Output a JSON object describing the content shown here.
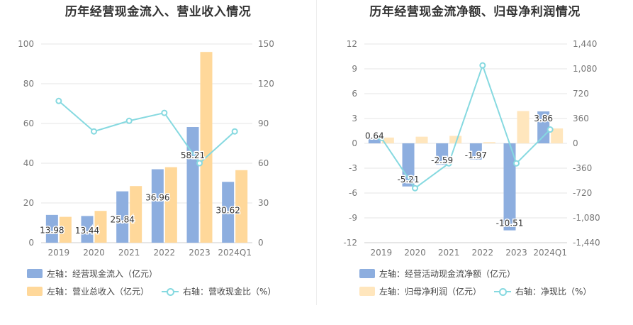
{
  "colors": {
    "bar_left": "#8daedf",
    "bar_right": "#ffd89a",
    "line": "#86d9e0",
    "grid": "#e6e6e6",
    "axis_text": "#777777"
  },
  "chart_data": [
    {
      "type": "bar",
      "title": "历年经营现金流入、营业收入情况",
      "categories": [
        "2019",
        "2020",
        "2021",
        "2022",
        "2023",
        "2024Q1"
      ],
      "y_left": {
        "min": 0,
        "max": 100,
        "ticks": [
          "0",
          "20",
          "40",
          "60",
          "80",
          "100"
        ]
      },
      "y_right": {
        "min": 0,
        "max": 150,
        "ticks": [
          "0",
          "30",
          "60",
          "90",
          "120",
          "150"
        ]
      },
      "series": [
        {
          "name": "左轴：经营现金流入（亿元）",
          "axis": "left",
          "kind": "bar",
          "values": [
            13.98,
            13.44,
            25.84,
            36.96,
            58.21,
            30.62
          ],
          "labels": [
            "13.98",
            "13.44",
            "25.84",
            "36.96",
            "58.21",
            "30.62"
          ]
        },
        {
          "name": "左轴：营业总收入（亿元）",
          "axis": "left",
          "kind": "bar",
          "values": [
            13.0,
            16.0,
            28.5,
            38.0,
            96.0,
            36.5
          ]
        },
        {
          "name": "右轴：营收现金比（%）",
          "axis": "right",
          "kind": "line",
          "values": [
            107,
            84,
            92,
            98,
            60,
            84
          ]
        }
      ],
      "legend_rows": [
        [
          "左轴：经营现金流入（亿元）"
        ],
        [
          "左轴：营业总收入（亿元）",
          "右轴：营收现金比（%）"
        ]
      ]
    },
    {
      "type": "bar",
      "title": "历年经营现金流净额、归母净利润情况",
      "categories": [
        "2019",
        "2020",
        "2021",
        "2022",
        "2023",
        "2024Q1"
      ],
      "y_left": {
        "min": -12,
        "max": 12,
        "ticks": [
          "-12",
          "-9",
          "-6",
          "-3",
          "0",
          "3",
          "6",
          "9",
          "12"
        ]
      },
      "y_right": {
        "min": -1440,
        "max": 1440,
        "ticks": [
          "-1,440",
          "-1,080",
          "-720",
          "-360",
          "0",
          "360",
          "720",
          "1,080",
          "1,440"
        ]
      },
      "series": [
        {
          "name": "左轴：经营活动现金流净额（亿元）",
          "axis": "left",
          "kind": "bar",
          "values": [
            0.64,
            -5.21,
            -2.59,
            -1.97,
            -10.51,
            3.86
          ],
          "labels": [
            "0.64",
            "-5.21",
            "-2.59",
            "-1.97",
            "-10.51",
            "3.86"
          ]
        },
        {
          "name": "左轴：归母净利润（亿元）",
          "axis": "left",
          "kind": "bar",
          "values": [
            0.7,
            0.8,
            0.9,
            0.15,
            3.9,
            1.8
          ]
        },
        {
          "name": "右轴：净现比（%）",
          "axis": "right",
          "kind": "line",
          "values": [
            80,
            -650,
            -290,
            1130,
            -290,
            200
          ]
        }
      ],
      "legend_rows": [
        [
          "左轴：经营活动现金流净额（亿元）"
        ],
        [
          "左轴：归母净利润（亿元）",
          "右轴：净现比（%）"
        ]
      ]
    }
  ]
}
